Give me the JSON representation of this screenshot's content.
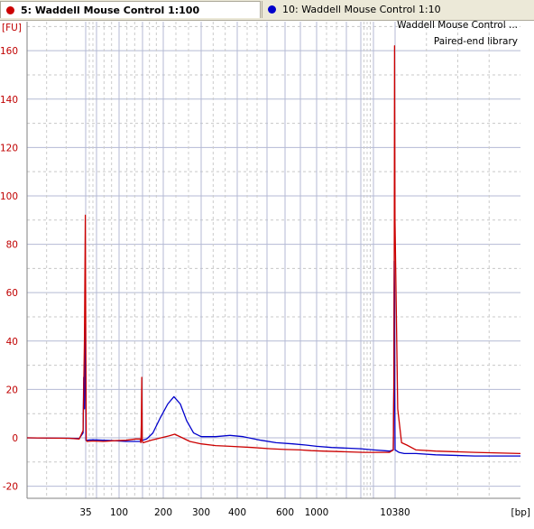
{
  "tabs": [
    {
      "label": "5: Waddell Mouse Control 1:100",
      "color": "#cc0000",
      "active": true
    },
    {
      "label": "10: Waddell Mouse Control 1:10",
      "color": "#0000cc",
      "active": false
    }
  ],
  "legend": {
    "line1": "Waddell Mouse Control ...",
    "line2": "Paired-end library"
  },
  "chart_data": {
    "type": "line",
    "title": "",
    "xlabel": "[bp]",
    "ylabel": "[FU]",
    "xscale": "electropherogram (non-linear bp)",
    "ylim": [
      -25,
      172
    ],
    "y_ticks": [
      -20,
      0,
      20,
      40,
      60,
      80,
      100,
      120,
      140,
      160
    ],
    "x_tick_labels": [
      "35",
      "100",
      "200",
      "300",
      "400",
      "600",
      "1000",
      "10380"
    ],
    "x_tick_bp": [
      35,
      100,
      200,
      300,
      400,
      600,
      1000,
      10380
    ],
    "x_gridlines_bp": [
      35,
      50,
      100,
      150,
      200,
      300,
      400,
      500,
      600,
      700,
      1000,
      2000,
      3000,
      7000,
      10380
    ],
    "grid": true,
    "series": [
      {
        "name": "5: Waddell Mouse Control 1:100",
        "color": "#cc0000",
        "points": [
          [
            17,
            0
          ],
          [
            30,
            -0.2
          ],
          [
            33,
            -0.5
          ],
          [
            34.2,
            3
          ],
          [
            34.6,
            40
          ],
          [
            34.9,
            92
          ],
          [
            35.2,
            35
          ],
          [
            35.7,
            -1
          ],
          [
            37,
            -1.5
          ],
          [
            45,
            -1.3
          ],
          [
            65,
            -1.5
          ],
          [
            90,
            -1.2
          ],
          [
            115,
            -1
          ],
          [
            135,
            -0.5
          ],
          [
            145,
            -0.5
          ],
          [
            146.5,
            -2
          ],
          [
            147.5,
            6
          ],
          [
            148.5,
            25
          ],
          [
            149.5,
            -1.5
          ],
          [
            152,
            -2
          ],
          [
            170,
            -1
          ],
          [
            190,
            -0.2
          ],
          [
            215,
            0.8
          ],
          [
            230,
            1.5
          ],
          [
            248,
            0.2
          ],
          [
            270,
            -1.5
          ],
          [
            300,
            -2.5
          ],
          [
            340,
            -3.2
          ],
          [
            380,
            -3.5
          ],
          [
            450,
            -4
          ],
          [
            520,
            -4.5
          ],
          [
            600,
            -4.8
          ],
          [
            700,
            -5
          ],
          [
            900,
            -5.3
          ],
          [
            1200,
            -5.5
          ],
          [
            2000,
            -5.8
          ],
          [
            4000,
            -6
          ],
          [
            7000,
            -6
          ],
          [
            9500,
            -6
          ],
          [
            10100,
            -5
          ],
          [
            10200,
            25
          ],
          [
            10250,
            80
          ],
          [
            10300,
            162
          ],
          [
            10360,
            90
          ],
          [
            10420,
            12
          ],
          [
            10480,
            -2
          ],
          [
            10560,
            -3
          ],
          [
            10700,
            -5
          ],
          [
            11000,
            -5.5
          ],
          [
            11600,
            -6
          ],
          [
            12300,
            -6.5
          ]
        ]
      },
      {
        "name": "10: Waddell Mouse Control 1:10",
        "color": "#0000cc",
        "points": [
          [
            17,
            0
          ],
          [
            30,
            -0.2
          ],
          [
            33,
            -0.3
          ],
          [
            34.2,
            2
          ],
          [
            34.4,
            25
          ],
          [
            34.6,
            12
          ],
          [
            34.8,
            47
          ],
          [
            35,
            30
          ],
          [
            35.3,
            -1
          ],
          [
            37,
            -1
          ],
          [
            45,
            -0.8
          ],
          [
            65,
            -1
          ],
          [
            90,
            -1.2
          ],
          [
            115,
            -1.5
          ],
          [
            135,
            -1.5
          ],
          [
            145,
            -1.5
          ],
          [
            147,
            -1
          ],
          [
            148.5,
            -0.5
          ],
          [
            150,
            -1
          ],
          [
            160,
            -0.5
          ],
          [
            175,
            2
          ],
          [
            192,
            8
          ],
          [
            212,
            14
          ],
          [
            228,
            17
          ],
          [
            245,
            14
          ],
          [
            262,
            7
          ],
          [
            280,
            2
          ],
          [
            300,
            0.5
          ],
          [
            340,
            0.5
          ],
          [
            380,
            1
          ],
          [
            420,
            0.5
          ],
          [
            480,
            -1
          ],
          [
            550,
            -2
          ],
          [
            650,
            -2.5
          ],
          [
            800,
            -3
          ],
          [
            1000,
            -3.5
          ],
          [
            1500,
            -4
          ],
          [
            3000,
            -4.5
          ],
          [
            7000,
            -5
          ],
          [
            9500,
            -5.5
          ],
          [
            10100,
            -5
          ],
          [
            10180,
            20
          ],
          [
            10240,
            73
          ],
          [
            10290,
            60
          ],
          [
            10330,
            20
          ],
          [
            10380,
            -5
          ],
          [
            10440,
            -6
          ],
          [
            10520,
            -6.5
          ],
          [
            10700,
            -6.5
          ],
          [
            11000,
            -7
          ],
          [
            11600,
            -7.5
          ],
          [
            12300,
            -7.5
          ]
        ]
      }
    ]
  }
}
